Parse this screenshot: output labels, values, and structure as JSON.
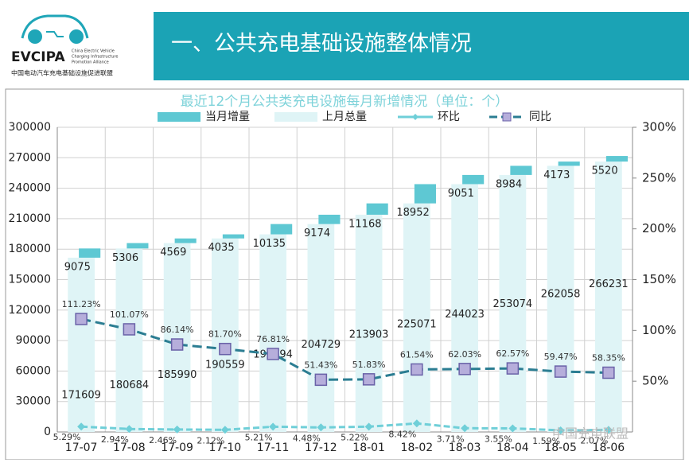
{
  "header": {
    "logo": "EVCIPA",
    "logo_lines": [
      "China Electric Vehicle",
      "Charging Infrastructure",
      "Promotion Alliance"
    ],
    "logo_cn": "中国电动汽车充电基础设施促进联盟",
    "title": "一、公共充电基础设施整体情况"
  },
  "watermark": "中国充电联盟",
  "chart_data": {
    "type": "bar",
    "title": "最近12个月公共类充电设施每月新增情况（单位：个）",
    "categories": [
      "17-07",
      "17-08",
      "17-09",
      "17-10",
      "17-11",
      "17-12",
      "18-01",
      "18-02",
      "18-03",
      "18-04",
      "18-05",
      "18-06"
    ],
    "series": [
      {
        "name": "当月增量",
        "color": "#5ec8d3",
        "values": [
          9075,
          5306,
          4569,
          4035,
          10135,
          9174,
          11168,
          18952,
          9051,
          8984,
          4173,
          5520
        ]
      },
      {
        "name": "上月总量",
        "color": "#dff4f6",
        "values": [
          171609,
          180684,
          185990,
          190559,
          194594,
          204729,
          213903,
          225071,
          244023,
          253074,
          262058,
          266231
        ]
      },
      {
        "name": "环比",
        "type": "line",
        "axis": "y2",
        "color": "#6fcfd8",
        "values": [
          5.29,
          2.94,
          2.46,
          2.12,
          5.21,
          4.48,
          5.22,
          8.42,
          3.71,
          3.55,
          1.59,
          2.07
        ],
        "value_labels": [
          "5.29%",
          "2.94%",
          "2.46%",
          "2.12%",
          "5.21%",
          "4.48%",
          "5.22%",
          "8.42%",
          "3.71%",
          "3.55%",
          "1.59%",
          "2.07%"
        ]
      },
      {
        "name": "同比",
        "type": "line",
        "axis": "y2",
        "color": "#2b7d92",
        "values": [
          111.23,
          101.07,
          86.14,
          81.7,
          76.81,
          51.43,
          51.83,
          61.54,
          62.03,
          62.57,
          59.47,
          58.35
        ],
        "value_labels": [
          "111.23%",
          "101.07%",
          "86.14%",
          "81.70%",
          "76.81%",
          "51.43%",
          "51.83%",
          "61.54%",
          "62.03%",
          "62.57%",
          "59.47%",
          "58.35%"
        ]
      }
    ],
    "ylim": [
      0,
      300000
    ],
    "yticks": [
      0,
      30000,
      60000,
      90000,
      120000,
      150000,
      180000,
      210000,
      240000,
      270000,
      300000
    ],
    "y2lim": [
      0,
      300
    ],
    "y2ticks": [
      {
        "value": 50,
        "label": "50%"
      },
      {
        "value": 100,
        "label": "100%"
      },
      {
        "value": 150,
        "label": "150%"
      },
      {
        "value": 200,
        "label": "200%"
      },
      {
        "value": 250,
        "label": "250%"
      },
      {
        "value": 300,
        "label": "300%"
      }
    ],
    "grid": true
  }
}
